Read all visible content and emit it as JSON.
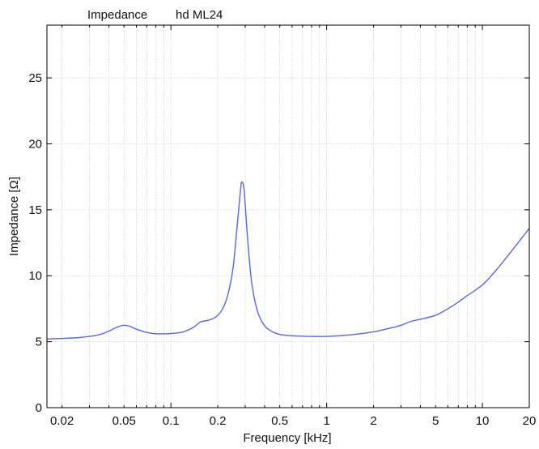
{
  "chart_data": {
    "type": "line",
    "title_left": "Impedance",
    "title_right": "hd ML24",
    "xlabel": "Frequency [kHz]",
    "ylabel": "Impedance [Ω]",
    "x_scale": "log",
    "xlim": [
      0.016,
      20
    ],
    "ylim": [
      0,
      29
    ],
    "grid": true,
    "x_ticks": [
      {
        "value": 0.02,
        "label": "0.02"
      },
      {
        "value": 0.05,
        "label": "0.05"
      },
      {
        "value": 0.1,
        "label": "0.1"
      },
      {
        "value": 0.2,
        "label": "0.2"
      },
      {
        "value": 0.5,
        "label": "0.5"
      },
      {
        "value": 1,
        "label": "1"
      },
      {
        "value": 2,
        "label": "2"
      },
      {
        "value": 5,
        "label": "5"
      },
      {
        "value": 10,
        "label": "10"
      },
      {
        "value": 20,
        "label": "20"
      }
    ],
    "y_ticks": [
      {
        "value": 0,
        "label": "0"
      },
      {
        "value": 5,
        "label": "5"
      },
      {
        "value": 10,
        "label": "10"
      },
      {
        "value": 15,
        "label": "15"
      },
      {
        "value": 20,
        "label": "20"
      },
      {
        "value": 25,
        "label": "25"
      }
    ],
    "series": [
      {
        "color": "#5566ee",
        "points": [
          [
            0.016,
            5.2
          ],
          [
            0.02,
            5.25
          ],
          [
            0.025,
            5.3
          ],
          [
            0.03,
            5.4
          ],
          [
            0.035,
            5.55
          ],
          [
            0.04,
            5.8
          ],
          [
            0.045,
            6.1
          ],
          [
            0.05,
            6.25
          ],
          [
            0.055,
            6.15
          ],
          [
            0.06,
            5.95
          ],
          [
            0.07,
            5.7
          ],
          [
            0.08,
            5.6
          ],
          [
            0.09,
            5.6
          ],
          [
            0.1,
            5.62
          ],
          [
            0.12,
            5.75
          ],
          [
            0.14,
            6.1
          ],
          [
            0.155,
            6.5
          ],
          [
            0.17,
            6.6
          ],
          [
            0.19,
            6.8
          ],
          [
            0.21,
            7.3
          ],
          [
            0.23,
            8.4
          ],
          [
            0.25,
            10.5
          ],
          [
            0.265,
            13.5
          ],
          [
            0.28,
            16.5
          ],
          [
            0.285,
            17.1
          ],
          [
            0.295,
            16.5
          ],
          [
            0.31,
            13.0
          ],
          [
            0.33,
            9.5
          ],
          [
            0.36,
            7.3
          ],
          [
            0.4,
            6.2
          ],
          [
            0.45,
            5.75
          ],
          [
            0.5,
            5.55
          ],
          [
            0.6,
            5.45
          ],
          [
            0.7,
            5.42
          ],
          [
            0.8,
            5.4
          ],
          [
            1,
            5.4
          ],
          [
            1.2,
            5.45
          ],
          [
            1.5,
            5.55
          ],
          [
            2,
            5.75
          ],
          [
            2.5,
            6.0
          ],
          [
            3,
            6.25
          ],
          [
            3.5,
            6.55
          ],
          [
            4,
            6.7
          ],
          [
            5,
            7.0
          ],
          [
            6,
            7.5
          ],
          [
            7,
            8.0
          ],
          [
            8,
            8.5
          ],
          [
            10,
            9.3
          ],
          [
            12,
            10.3
          ],
          [
            15,
            11.7
          ],
          [
            20,
            13.6
          ]
        ]
      }
    ]
  }
}
